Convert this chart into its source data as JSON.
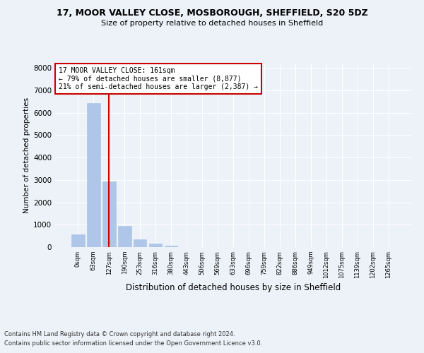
{
  "title_line1": "17, MOOR VALLEY CLOSE, MOSBOROUGH, SHEFFIELD, S20 5DZ",
  "title_line2": "Size of property relative to detached houses in Sheffield",
  "xlabel": "Distribution of detached houses by size in Sheffield",
  "ylabel": "Number of detached properties",
  "bar_labels": [
    "0sqm",
    "63sqm",
    "127sqm",
    "190sqm",
    "253sqm",
    "316sqm",
    "380sqm",
    "443sqm",
    "506sqm",
    "569sqm",
    "633sqm",
    "696sqm",
    "759sqm",
    "822sqm",
    "886sqm",
    "949sqm",
    "1012sqm",
    "1075sqm",
    "1139sqm",
    "1202sqm",
    "1265sqm"
  ],
  "bar_values": [
    580,
    6420,
    2920,
    960,
    360,
    150,
    65,
    0,
    0,
    0,
    0,
    0,
    0,
    0,
    0,
    0,
    0,
    0,
    0,
    0,
    0
  ],
  "bar_color": "#aec6e8",
  "bar_edge_color": "#aec6e8",
  "vline_x": 2,
  "vline_color": "#cc0000",
  "ylim": [
    0,
    8200
  ],
  "yticks": [
    0,
    1000,
    2000,
    3000,
    4000,
    5000,
    6000,
    7000,
    8000
  ],
  "annotation_title": "17 MOOR VALLEY CLOSE: 161sqm",
  "annotation_line2": "← 79% of detached houses are smaller (8,877)",
  "annotation_line3": "21% of semi-detached houses are larger (2,387) →",
  "annotation_box_color": "#cc0000",
  "footnote_line1": "Contains HM Land Registry data © Crown copyright and database right 2024.",
  "footnote_line2": "Contains public sector information licensed under the Open Government Licence v3.0.",
  "background_color": "#edf2f8",
  "plot_bg_color": "#edf2f8",
  "grid_color": "#ffffff"
}
